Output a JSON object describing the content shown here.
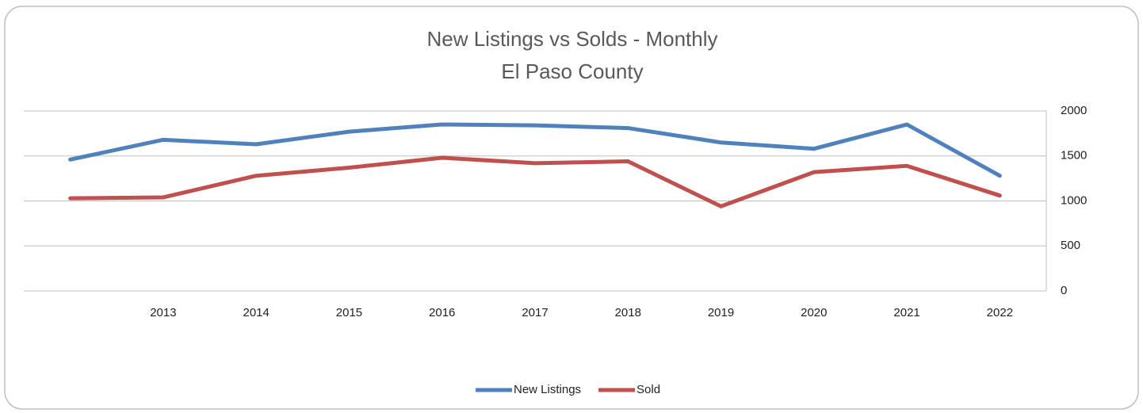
{
  "chart_data": {
    "type": "line",
    "title": "New Listings vs Solds - Monthly",
    "subtitle": "El Paso County",
    "categories": [
      null,
      "2013",
      "2014",
      "2015",
      "2016",
      "2017",
      "2018",
      "2019",
      "2020",
      "2021",
      "2022"
    ],
    "series": [
      {
        "name": "New Listings",
        "color": "#4f81bd",
        "values": [
          1460,
          1680,
          1630,
          1770,
          1850,
          1840,
          1810,
          1650,
          1580,
          1850,
          1280
        ]
      },
      {
        "name": "Sold",
        "color": "#c0504d",
        "values": [
          1030,
          1040,
          1280,
          1370,
          1480,
          1420,
          1440,
          940,
          1320,
          1390,
          1060
        ]
      }
    ],
    "ylim": [
      0,
      2000
    ],
    "yticks": [
      0,
      500,
      1000,
      1500,
      2000
    ],
    "grid": true,
    "legend": "bottom"
  }
}
